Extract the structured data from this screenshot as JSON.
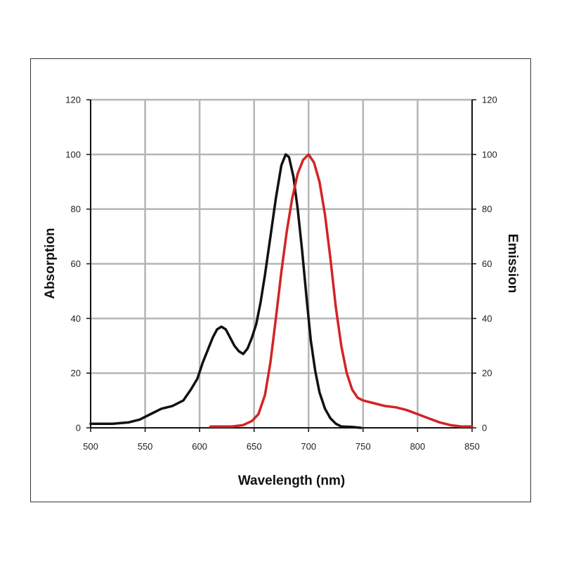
{
  "chart_data": {
    "type": "line",
    "xlabel": "Wavelength (nm)",
    "ylabel_left": "Absorption",
    "ylabel_right": "Emission",
    "xlim": [
      500,
      850
    ],
    "ylim": [
      0,
      120
    ],
    "x_ticks": [
      500,
      550,
      600,
      650,
      700,
      750,
      800,
      850
    ],
    "y_ticks": [
      0,
      20,
      40,
      60,
      80,
      100,
      120
    ],
    "grid": true,
    "series": [
      {
        "name": "",
        "axis": "left",
        "color": "#111111",
        "points": [
          [
            500,
            1.5
          ],
          [
            520,
            1.5
          ],
          [
            535,
            2
          ],
          [
            545,
            3
          ],
          [
            555,
            5
          ],
          [
            565,
            7
          ],
          [
            575,
            8
          ],
          [
            585,
            10
          ],
          [
            592,
            14
          ],
          [
            598,
            18
          ],
          [
            603,
            24
          ],
          [
            608,
            29
          ],
          [
            612,
            33
          ],
          [
            616,
            36
          ],
          [
            620,
            37
          ],
          [
            624,
            36
          ],
          [
            628,
            33
          ],
          [
            632,
            30
          ],
          [
            636,
            28
          ],
          [
            640,
            27
          ],
          [
            644,
            29
          ],
          [
            648,
            33
          ],
          [
            652,
            38
          ],
          [
            656,
            46
          ],
          [
            660,
            56
          ],
          [
            665,
            70
          ],
          [
            670,
            84
          ],
          [
            675,
            96
          ],
          [
            679,
            100
          ],
          [
            682,
            99
          ],
          [
            686,
            92
          ],
          [
            690,
            80
          ],
          [
            694,
            65
          ],
          [
            698,
            48
          ],
          [
            702,
            32
          ],
          [
            706,
            21
          ],
          [
            710,
            13
          ],
          [
            715,
            7
          ],
          [
            720,
            3.5
          ],
          [
            725,
            1.5
          ],
          [
            730,
            0.5
          ],
          [
            740,
            0.3
          ],
          [
            748,
            0
          ]
        ]
      },
      {
        "name": "",
        "axis": "right",
        "color": "#d42323",
        "points": [
          [
            610,
            0.5
          ],
          [
            630,
            0.5
          ],
          [
            640,
            1
          ],
          [
            648,
            2.5
          ],
          [
            654,
            5
          ],
          [
            660,
            12
          ],
          [
            665,
            24
          ],
          [
            670,
            40
          ],
          [
            675,
            57
          ],
          [
            680,
            72
          ],
          [
            685,
            84
          ],
          [
            690,
            93
          ],
          [
            695,
            98
          ],
          [
            700,
            100
          ],
          [
            705,
            97
          ],
          [
            710,
            90
          ],
          [
            715,
            78
          ],
          [
            720,
            62
          ],
          [
            725,
            44
          ],
          [
            730,
            30
          ],
          [
            735,
            20
          ],
          [
            740,
            14
          ],
          [
            745,
            11
          ],
          [
            750,
            10
          ],
          [
            760,
            9
          ],
          [
            770,
            8
          ],
          [
            780,
            7.5
          ],
          [
            790,
            6.5
          ],
          [
            800,
            5
          ],
          [
            810,
            3.5
          ],
          [
            820,
            2
          ],
          [
            830,
            1
          ],
          [
            840,
            0.5
          ],
          [
            850,
            0.5
          ]
        ]
      }
    ]
  }
}
